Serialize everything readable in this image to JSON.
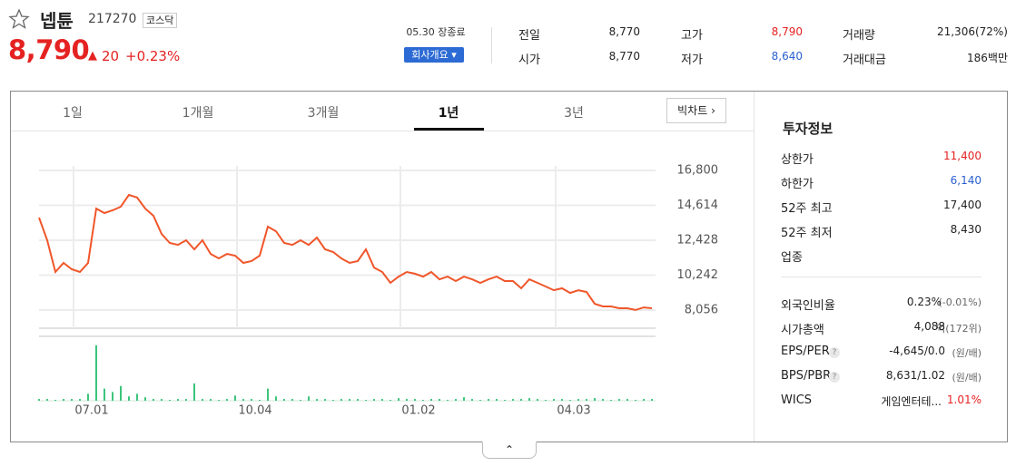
{
  "header": {
    "name": "넵튠",
    "code": "217270",
    "market": "코스닥",
    "price": "8,790",
    "change": "20",
    "change_rate": "+0.23%",
    "status": "05.30 장종료",
    "company_button": "회사개요"
  },
  "summary": [
    [
      {
        "label": "전일",
        "value": "8,770"
      },
      {
        "label": "고가",
        "value": "8,790"
      },
      {
        "label": "거래량",
        "value": "21,306(72%)"
      }
    ],
    [
      {
        "label": "시가",
        "value": "8,770"
      },
      {
        "label": "저가",
        "value": "8,640"
      },
      {
        "label": "거래대금",
        "value": "186백만"
      }
    ]
  ],
  "tabs": [
    "1일",
    "1개월",
    "3개월",
    "1년",
    "3년"
  ],
  "big_chart": "빅차트",
  "chart": {
    "type": "line",
    "color": "#f0562a",
    "volume_color": "#3cc47c",
    "grid": true,
    "categories": [
      null,
      null,
      null,
      null,
      null,
      null,
      "07.01",
      null,
      null,
      null,
      null,
      null,
      null,
      null,
      null,
      null,
      null,
      null,
      null,
      null,
      null,
      null,
      null,
      null,
      null,
      null,
      "10.04",
      null,
      null,
      null,
      null,
      null,
      null,
      null,
      null,
      null,
      null,
      null,
      null,
      null,
      null,
      null,
      null,
      null,
      null,
      null,
      "01.02",
      null,
      null,
      null,
      null,
      null,
      null,
      null,
      null,
      null,
      null,
      null,
      null,
      null,
      null,
      null,
      null,
      null,
      null,
      "04.03",
      null,
      null,
      null,
      null,
      null,
      null,
      null,
      null,
      null,
      null
    ],
    "values": [
      13850,
      12430,
      10440,
      11010,
      10610,
      10440,
      11010,
      14410,
      14130,
      14300,
      14530,
      15270,
      15100,
      14410,
      13960,
      12820,
      12260,
      12140,
      12430,
      11860,
      12430,
      11570,
      11290,
      11570,
      11460,
      11010,
      11120,
      11460,
      13280,
      12990,
      12260,
      12140,
      12430,
      12140,
      12600,
      11860,
      11690,
      11290,
      11010,
      11120,
      11860,
      10720,
      10440,
      9760,
      10150,
      10440,
      10330,
      10150,
      10440,
      9980,
      10150,
      9870,
      10150,
      9980,
      9760,
      9980,
      10150,
      9870,
      9870,
      9420,
      9980,
      9760,
      9530,
      9300,
      9420,
      9130,
      9300,
      9190,
      8450,
      8280,
      8280,
      8170,
      8170,
      8060,
      8220,
      8170
    ],
    "volume": [
      2,
      2,
      1,
      2,
      2,
      2,
      8,
      64,
      14,
      10,
      17,
      5,
      8,
      4,
      2,
      2,
      1,
      2,
      2,
      20,
      2,
      2,
      1,
      2,
      6,
      2,
      2,
      1,
      14,
      5,
      2,
      2,
      1,
      5,
      2,
      2,
      1,
      2,
      2,
      2,
      1,
      2,
      2,
      1,
      3,
      2,
      2,
      1,
      2,
      2,
      1,
      2,
      4,
      2,
      1,
      2,
      2,
      1,
      2,
      2,
      3,
      2,
      1,
      2,
      2,
      1,
      2,
      2,
      3,
      2,
      1,
      2,
      2,
      1,
      2,
      2
    ],
    "ylim": [
      6920,
      17084
    ],
    "volume_lim": [
      0,
      68
    ],
    "yticks": [
      {
        "value": 16800,
        "label": "16,800"
      },
      {
        "value": 14614,
        "label": "14,614"
      },
      {
        "value": 12428,
        "label": "12,428"
      },
      {
        "value": 10242,
        "label": "10,242"
      },
      {
        "value": 8056,
        "label": "8,056"
      }
    ]
  },
  "invest": {
    "title": "투자정보",
    "rows": [
      {
        "label": "상한가",
        "value": "11,400"
      },
      {
        "label": "하한가",
        "value": "6,140"
      },
      {
        "label": "52주 최고",
        "value": "17,400"
      },
      {
        "label": "52주 최저",
        "value": "8,430"
      },
      {
        "label": "업종"
      }
    ],
    "rows2": [
      {
        "label": "외국인비율",
        "value": "0.23%",
        "sub": "(-0.01%)"
      },
      {
        "label": "시가총액",
        "value": "4,088",
        "sub": "억(172위)"
      },
      {
        "label": "EPS/PER",
        "value": "-4,645/0.0",
        "sub": "(원/배)"
      },
      {
        "label": "BPS/PBR",
        "value": "8,631/1.02",
        "sub": "(원/배)"
      },
      {
        "label": "WICS",
        "value": "게임엔터테...",
        "sub": "1.01%"
      }
    ]
  }
}
